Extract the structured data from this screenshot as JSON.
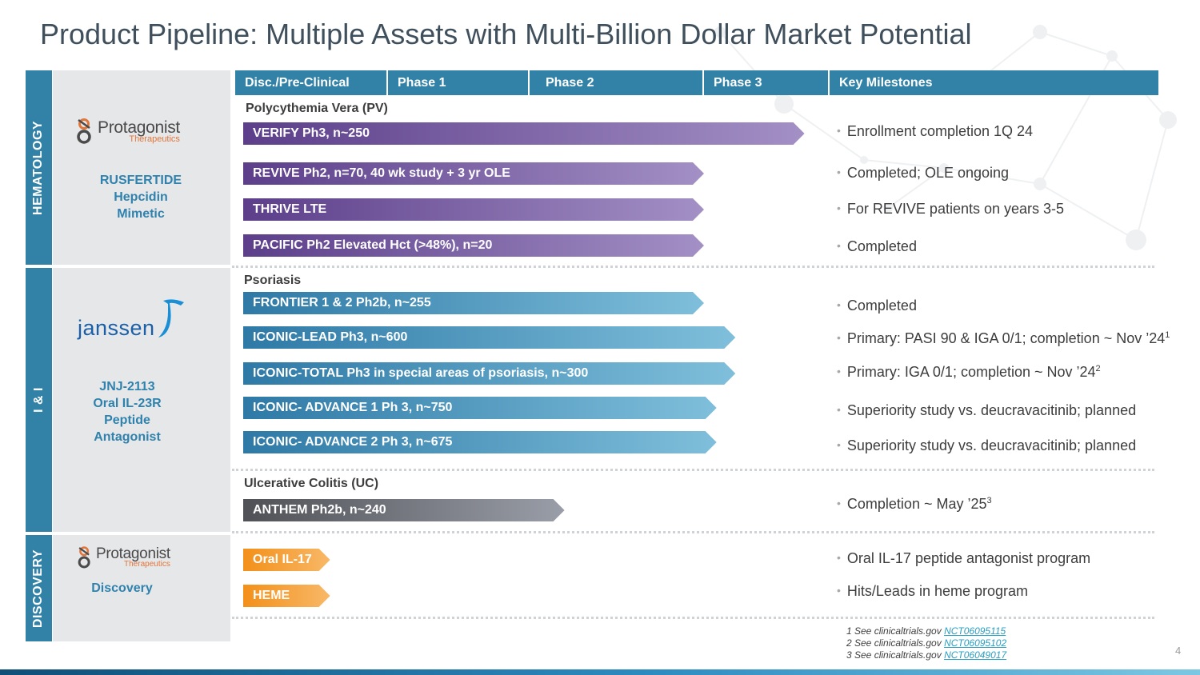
{
  "title": "Product Pipeline: Multiple Assets with Multi-Billion Dollar Market Potential",
  "colors": {
    "header_blue": "#3282a8",
    "purple": "#5c3e8a",
    "blue": "#2e79a6",
    "gray": "#4f5156",
    "orange": "#f39019",
    "link": "#2a9fc2"
  },
  "categories": {
    "hematology": "HEMATOLOGY",
    "ii": "I & I",
    "discovery": "DISCOVERY"
  },
  "logos": {
    "protagonist_name": "Protagonist",
    "protagonist_sub": "Therapeutics",
    "janssen": "janssen"
  },
  "drugs": {
    "rusfertide": [
      "RUSFERTIDE",
      "Hepcidin",
      "Mimetic"
    ],
    "jnj": [
      "JNJ-2113",
      "Oral IL-23R",
      "Peptide",
      "Antagonist"
    ],
    "discovery": "Discovery"
  },
  "headers": [
    "Disc./Pre-Clinical",
    "Phase 1",
    "Phase 2",
    "Phase 3",
    "Key Milestones"
  ],
  "sections": {
    "pv": "Polycythemia Vera (PV)",
    "psoriasis": "Psoriasis",
    "uc": "Ulcerative Colitis (UC)"
  },
  "programs": [
    {
      "label": "VERIFY Ph3, n~250",
      "phase_end": 3.8
    },
    {
      "label": "REVIVE Ph2, n=70, 40 wk study + 3 yr OLE",
      "phase_end": 3.0
    },
    {
      "label": "THRIVE LTE",
      "phase_end": 3.0
    },
    {
      "label": "PACIFIC Ph2 Elevated Hct (>48%), n=20",
      "phase_end": 3.0
    },
    {
      "label": "FRONTIER 1 & 2 Ph2b, n~255",
      "phase_end": 3.0
    },
    {
      "label": "ICONIC-LEAD Ph3, n~600",
      "phase_end": 3.25
    },
    {
      "label": "ICONIC-TOTAL Ph3 in special areas of psoriasis, n~300",
      "phase_end": 3.25
    },
    {
      "label": "ICONIC- ADVANCE 1 Ph 3, n~750",
      "phase_end": 3.1
    },
    {
      "label": "ICONIC- ADVANCE 2 Ph 3, n~675",
      "phase_end": 3.1
    },
    {
      "label": "ANTHEM Ph2b, n~240",
      "phase_end": 2.2
    },
    {
      "label": "Oral IL-17",
      "phase_end": 0.6
    },
    {
      "label": "HEME",
      "phase_end": 0.6
    }
  ],
  "milestones": [
    {
      "text": "Enrollment completion 1Q 24",
      "sup": ""
    },
    {
      "text": "Completed; OLE ongoing",
      "sup": ""
    },
    {
      "text": "For REVIVE patients on years 3-5",
      "sup": ""
    },
    {
      "text": "Completed",
      "sup": ""
    },
    {
      "text": "Completed",
      "sup": ""
    },
    {
      "text": "Primary: PASI 90 & IGA 0/1; completion ~ Nov ’24",
      "sup": "1"
    },
    {
      "text": "Primary: IGA 0/1; completion ~ Nov ’24",
      "sup": "2"
    },
    {
      "text": "Superiority study vs. deucravacitinib; planned",
      "sup": ""
    },
    {
      "text": "Superiority study vs. deucravacitinib; planned",
      "sup": ""
    },
    {
      "text": "Completion ~ May ’25",
      "sup": "3"
    },
    {
      "text": "Oral IL-17 peptide antagonist program",
      "sup": ""
    },
    {
      "text": "Hits/Leads in heme program",
      "sup": ""
    }
  ],
  "footnotes": [
    {
      "text": "1 See clinicaltrials.gov ",
      "link": "NCT06095115"
    },
    {
      "text": "2 See clinicaltrials.gov ",
      "link": "NCT06095102"
    },
    {
      "text": "3 See clinicaltrials.gov ",
      "link": "NCT06049017"
    }
  ],
  "page_number": "4"
}
